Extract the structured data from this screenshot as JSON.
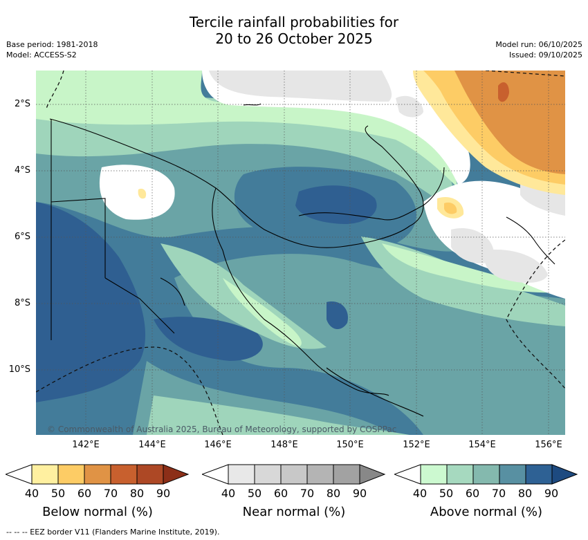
{
  "header": {
    "title_line1": "Tercile rainfall probabilities for",
    "title_line2": "20 to 26 October 2025",
    "base_period": "Base period: 1981-2018",
    "model": "Model: ACCESS-S2",
    "model_run": "Model run: 06/10/2025",
    "issued": "Issued: 09/10/2025"
  },
  "map": {
    "lat_labels": [
      "2°S",
      "4°S",
      "6°S",
      "8°S",
      "10°S"
    ],
    "lon_labels": [
      "142°E",
      "144°E",
      "146°E",
      "148°E",
      "150°E",
      "152°E",
      "154°E",
      "156°E"
    ],
    "copyright": "© Commonwealth of Australia 2025, Bureau of Meteorology, supported by COSPPac",
    "colors": {
      "above_50": "#c8f5c8",
      "above_60": "#9fd5bb",
      "above_70": "#6aa4a6",
      "above_80": "#437c9a",
      "above_90": "#2f5f91",
      "near_50": "#e6e6e6",
      "below_50": "#ffe89a",
      "below_60": "#fdcc65",
      "below_70": "#e09345",
      "below_80": "#c8602e"
    }
  },
  "legends": [
    {
      "title": "Below normal (%)",
      "ticks": [
        "40",
        "50",
        "60",
        "70",
        "80",
        "90"
      ],
      "colors": [
        "#ffffff",
        "#fff0a0",
        "#fdcc65",
        "#e09345",
        "#c8602e",
        "#ad4825",
        "#8c2f18"
      ]
    },
    {
      "title": "Near normal (%)",
      "ticks": [
        "40",
        "50",
        "60",
        "70",
        "80",
        "90"
      ],
      "colors": [
        "#ffffff",
        "#e8e8e8",
        "#d8d8d8",
        "#c8c8c8",
        "#b4b4b4",
        "#a2a2a2",
        "#888888"
      ]
    },
    {
      "title": "Above normal (%)",
      "ticks": [
        "40",
        "50",
        "60",
        "70",
        "80",
        "90"
      ],
      "colors": [
        "#ffffff",
        "#ccf9d0",
        "#a6d9bf",
        "#84b9ae",
        "#5890a2",
        "#2e6194",
        "#1d4a80"
      ]
    }
  ],
  "footnote": "--  --  -- EEZ border V11 (Flanders Marine Institute, 2019)."
}
